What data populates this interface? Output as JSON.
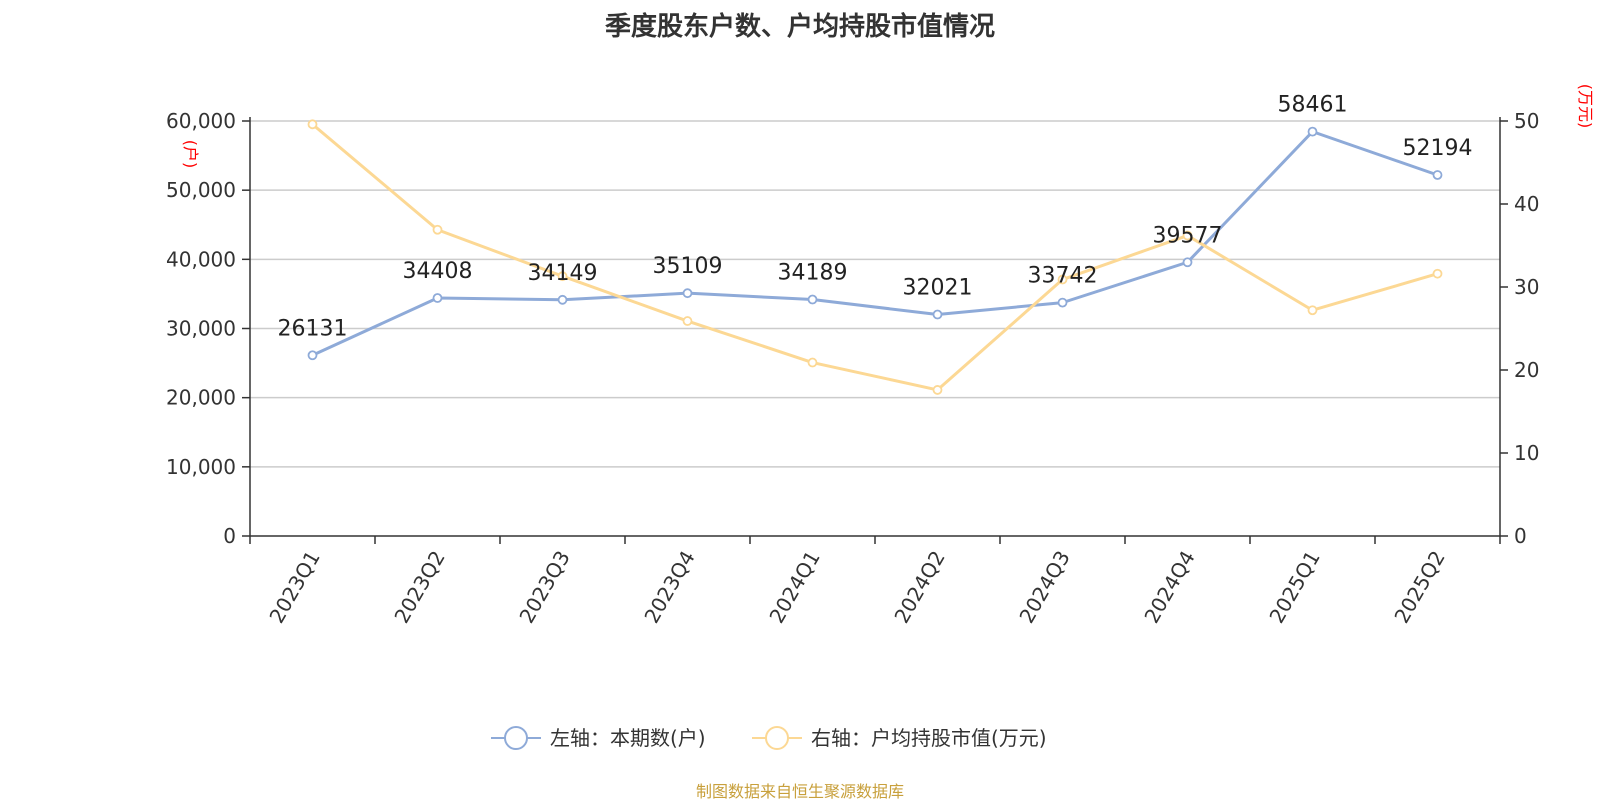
{
  "title": "季度股东户数、户均持股市值情况",
  "source": "制图数据来自恒生聚源数据库",
  "chart_data": {
    "type": "line",
    "title": "季度股东户数、户均持股市值情况",
    "categories": [
      "2023Q1",
      "2023Q2",
      "2023Q3",
      "2023Q4",
      "2024Q1",
      "2024Q2",
      "2024Q3",
      "2024Q4",
      "2025Q1",
      "2025Q2"
    ],
    "y_left": {
      "unit_label": "(户)",
      "min": 0,
      "max": 60000,
      "ticks": [
        "0",
        "10,000",
        "20,000",
        "30,000",
        "40,000",
        "50,000",
        "60,000"
      ]
    },
    "y_right": {
      "unit_label": "(万元)",
      "min": 0,
      "max": 50,
      "ticks": [
        "0",
        "10",
        "20",
        "30",
        "40",
        "50"
      ]
    },
    "grid": true,
    "legend_position": "bottom",
    "series": [
      {
        "name": "左轴：本期数(户)",
        "axis": "left",
        "color": "#8eaad8",
        "values": [
          26131,
          34408,
          34149,
          35109,
          34189,
          32021,
          33742,
          39577,
          58461,
          52194
        ],
        "labels": [
          "26131",
          "34408",
          "34149",
          "35109",
          "34189",
          "32021",
          "33742",
          "39577",
          "58461",
          "52194"
        ]
      },
      {
        "name": "右轴：户均持股市值(万元)",
        "axis": "right",
        "color": "#fcd894",
        "values": [
          49.6,
          36.9,
          31.3,
          25.9,
          20.9,
          17.6,
          30.9,
          36.2,
          27.2,
          31.6
        ]
      }
    ]
  }
}
